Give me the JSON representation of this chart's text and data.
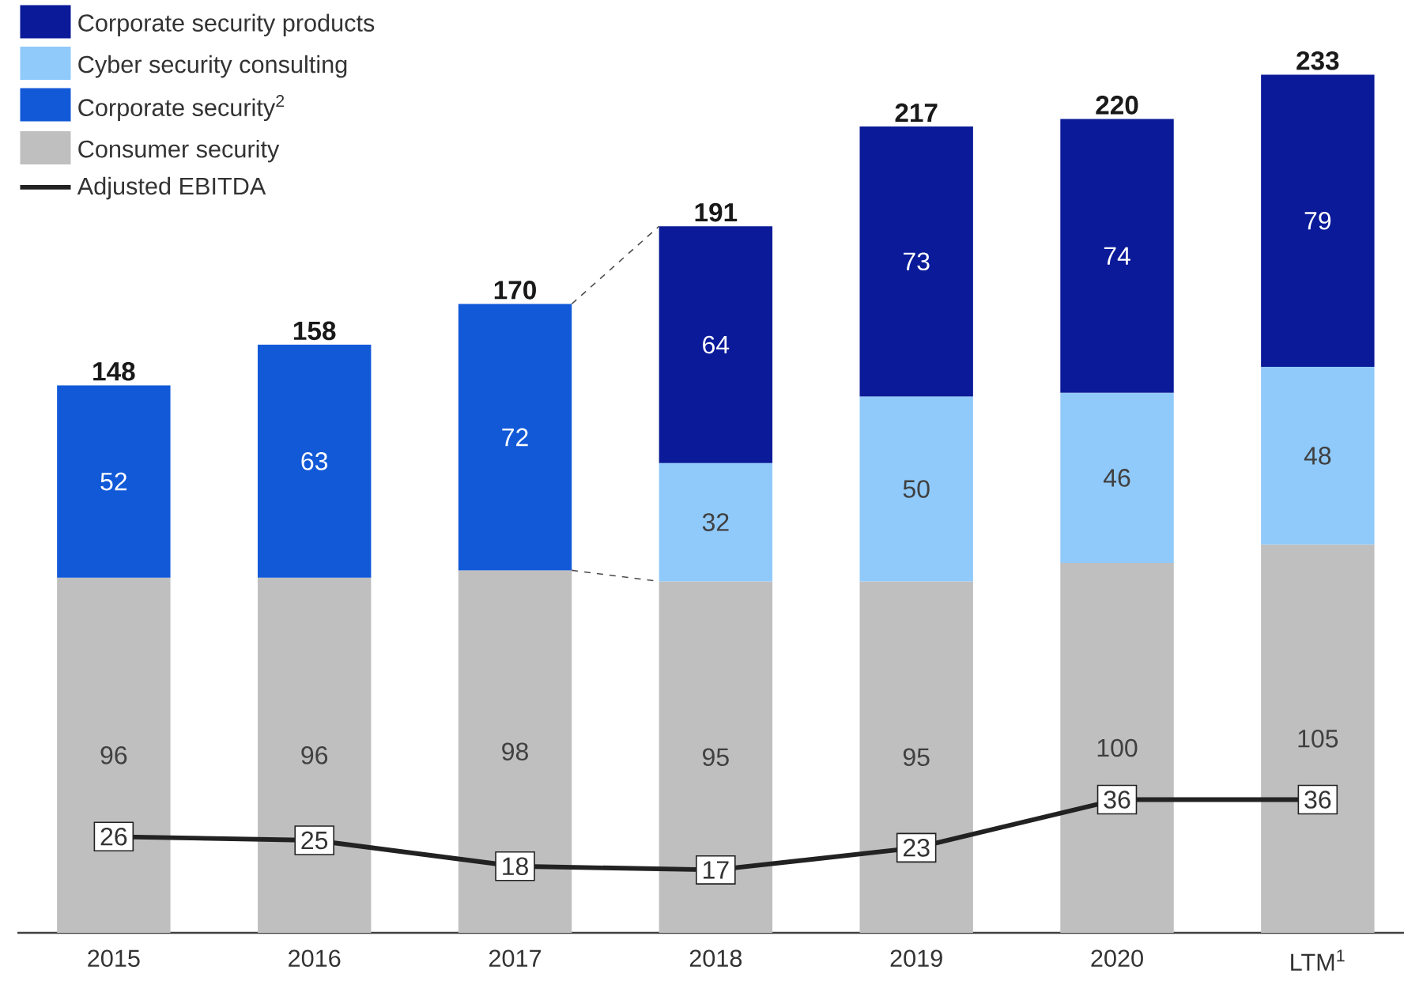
{
  "chart_data": {
    "type": "bar",
    "stacked": true,
    "data_labels": true,
    "legend": "top left",
    "categories": [
      "2015",
      "2016",
      "2017",
      "2018",
      "2019",
      "2020",
      "LTM$^{1}$"
    ],
    "totals": [
      "148",
      "158",
      "170",
      "191",
      "217",
      "220",
      "233"
    ],
    "series": [
      {
        "name": "Consumer security",
        "color": "#bfbfbf",
        "values": [
          96,
          96,
          98,
          95,
          95,
          100,
          105
        ]
      },
      {
        "name": "Corporate security$^{2}$",
        "color": "#1259d8",
        "values": [
          52,
          63,
          72,
          null,
          null,
          null,
          null
        ]
      },
      {
        "name": "Cyber security consulting",
        "color": "#90cafb",
        "values": [
          null,
          null,
          null,
          32,
          50,
          46,
          48
        ]
      },
      {
        "name": "Corporate security products",
        "color": "#0a1a99",
        "values": [
          null,
          null,
          null,
          64,
          73,
          74,
          79
        ]
      },
      {
        "name": "Adjusted EBITDA",
        "type": "line",
        "color": "#222222",
        "marker": "square",
        "values": [
          26,
          25,
          18,
          17,
          23,
          36,
          36
        ]
      }
    ]
  }
}
